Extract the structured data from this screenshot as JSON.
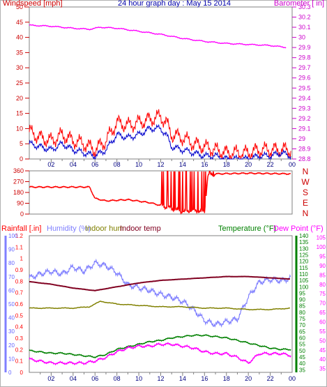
{
  "chart_data": [
    {
      "type": "line",
      "title": "24 hour graph day : May 15 2014",
      "left_label": "Windspeed [mph]",
      "right_label": "Barometer [ in]",
      "x_ticks": [
        "02",
        "04",
        "06",
        "08",
        "10",
        "12",
        "14",
        "16",
        "18",
        "20",
        "22",
        "00"
      ],
      "y_left_ticks": [
        "0",
        "5",
        "10",
        "15",
        "20",
        "25",
        "30",
        "35",
        "40",
        "45",
        "50"
      ],
      "y_left_range": [
        0,
        50
      ],
      "y_right_ticks": [
        "28.8",
        "28.9",
        "29",
        "29.1",
        "29.2",
        "29.3",
        "29.4",
        "29.5",
        "29.6",
        "29.7",
        "29.8",
        "29.9",
        "30",
        "30.1",
        "30.2",
        "30.3"
      ],
      "y_right_range": [
        28.8,
        30.3
      ],
      "colors": {
        "gust": "#ff0000",
        "wind": "#0000cc",
        "barometer": "#ff00ff",
        "left_axis": "#cc0000",
        "right_axis": "#cc00cc"
      },
      "series": [
        {
          "key": "barometer",
          "axis": "right",
          "hours": [
            0,
            2,
            4,
            5.5,
            6.5,
            8,
            10,
            12,
            14,
            16,
            18,
            20,
            22,
            23.5
          ],
          "values": [
            30.12,
            30.11,
            30.09,
            30.08,
            30.1,
            30.09,
            30.06,
            30.03,
            29.99,
            29.96,
            29.94,
            29.93,
            29.92,
            29.9
          ]
        },
        {
          "key": "gust",
          "axis": "left",
          "hours": [
            0,
            1,
            2,
            3,
            4,
            5,
            6,
            7,
            8,
            9,
            10,
            11,
            12,
            12.5,
            13,
            14,
            15,
            16,
            17,
            18,
            19,
            20,
            21,
            22,
            23,
            23.9
          ],
          "values": [
            9,
            7,
            6,
            8,
            6,
            5,
            3,
            6,
            12,
            11,
            12,
            13,
            14,
            12,
            8,
            7,
            5,
            4,
            3,
            2,
            2,
            2,
            3,
            3,
            3,
            3
          ]
        },
        {
          "key": "wind",
          "axis": "left",
          "hours": [
            0,
            1,
            2,
            3,
            4,
            5,
            6,
            7,
            8,
            9,
            10,
            11,
            12,
            12.5,
            13,
            14,
            15,
            16,
            17,
            18,
            19,
            20,
            21,
            22,
            23,
            23.9
          ],
          "values": [
            5,
            4,
            3,
            5,
            3,
            2,
            1,
            3,
            8,
            7,
            8,
            10,
            10,
            8,
            4,
            3,
            2,
            1,
            1,
            0,
            0,
            0,
            1,
            1,
            2,
            1
          ]
        }
      ]
    },
    {
      "type": "line",
      "right_label": "N W S E N",
      "y_left_ticks": [
        "0",
        "90",
        "180",
        "270",
        "360"
      ],
      "y_left_range": [
        0,
        360
      ],
      "colors": {
        "direction": "#ff0000",
        "axis": "#cc0000"
      },
      "series": [
        {
          "key": "direction",
          "hours": [
            0,
            5.5,
            6,
            7,
            9,
            11,
            12.5,
            14,
            15,
            16,
            16.3,
            17,
            20,
            23.9
          ],
          "values": [
            225,
            225,
            130,
            110,
            120,
            95,
            60,
            20,
            30,
            20,
            320,
            335,
            340,
            335
          ]
        }
      ]
    },
    {
      "type": "line",
      "labels": {
        "rainfall": "Rainfall [.in]",
        "humidity": "Humidity (%)",
        "indoor_hum": "Indoor hum",
        "indoor_temp": "Indoor temp",
        "temperature": "Temperature (°F)",
        "dew_point": "Dew Point (°F)"
      },
      "y_rain_ticks": [
        "0",
        "0.1",
        "0.2",
        "0.3",
        "0.4",
        "0.5",
        "0.6",
        "0.7",
        "0.8",
        "0.9",
        "1",
        "1.1",
        "1.2"
      ],
      "y_rain_range": [
        0,
        1.2
      ],
      "y_hum_ticks": [
        "0",
        "10",
        "20",
        "30",
        "40",
        "50",
        "60",
        "70",
        "80",
        "90",
        "100"
      ],
      "y_hum_range": [
        0,
        100
      ],
      "y_temp_ticks": [
        "35",
        "40",
        "45",
        "50",
        "55",
        "60",
        "65",
        "70",
        "75",
        "80",
        "85",
        "90",
        "95",
        "100",
        "105",
        "110",
        "115",
        "120",
        "125",
        "130",
        "135",
        "140"
      ],
      "y_temp_range": [
        33,
        140
      ],
      "y_dew_ticks": [
        "35",
        "40",
        "45",
        "50",
        "55",
        "60",
        "65",
        "70",
        "75",
        "80",
        "85",
        "90",
        "95",
        "100",
        "105"
      ],
      "colors": {
        "rainfall": "#ff0000",
        "humidity": "#8080ff",
        "indoor_hum": "#808000",
        "indoor_temp": "#800020",
        "temperature": "#008000",
        "dew_point": "#ff00ff",
        "rain_axis": "#6666ff",
        "temp_axis": "#008000",
        "dew_axis": "#ff00ff"
      },
      "series": [
        {
          "key": "humidity",
          "axis": "hum",
          "hours": [
            0,
            1,
            2,
            3,
            4,
            5,
            6,
            7,
            8,
            9,
            10,
            11,
            12,
            13,
            14,
            15,
            16,
            17,
            18,
            19,
            20,
            21,
            22,
            23,
            23.9
          ],
          "values": [
            69,
            72,
            74,
            72,
            77,
            74,
            80,
            78,
            73,
            64,
            62,
            60,
            57,
            55,
            52,
            46,
            38,
            35,
            37,
            39,
            55,
            66,
            68,
            67,
            69
          ]
        },
        {
          "key": "indoor_hum",
          "axis": "hum",
          "hours": [
            0,
            2,
            4,
            5.5,
            6.5,
            8,
            10,
            12,
            14,
            16,
            18,
            20,
            22,
            23.9
          ],
          "values": [
            47,
            47,
            47,
            48,
            52,
            50,
            49,
            48,
            48,
            47,
            47,
            46,
            46,
            47
          ]
        },
        {
          "key": "indoor_temp",
          "axis": "temp",
          "hours": [
            0,
            2,
            4,
            6,
            8,
            10,
            12,
            14,
            16,
            18,
            20,
            22,
            23.9
          ],
          "values": [
            104,
            102,
            99,
            97,
            100,
            103,
            105,
            106,
            107,
            108,
            108,
            107,
            106
          ]
        },
        {
          "key": "temperature",
          "axis": "temp",
          "hours": [
            0,
            1,
            2,
            3,
            4,
            5,
            6,
            7,
            8,
            9,
            10,
            11,
            12,
            13,
            14,
            15,
            16,
            17,
            18,
            19,
            20,
            21,
            22,
            23,
            23.9
          ],
          "values": [
            50,
            49,
            48,
            48,
            47,
            46,
            45,
            47,
            51,
            53,
            55,
            57,
            58,
            60,
            61,
            62,
            62,
            61,
            60,
            58,
            56,
            54,
            52,
            51,
            51
          ]
        },
        {
          "key": "dew_point",
          "axis": "temp",
          "hours": [
            0,
            1,
            2,
            3,
            4,
            5,
            6,
            7,
            8,
            9,
            10,
            11,
            12,
            13,
            14,
            15,
            16,
            17,
            18,
            19,
            20,
            21,
            22,
            23,
            23.9
          ],
          "values": [
            40,
            39,
            38,
            38,
            38,
            38,
            39,
            41,
            44,
            46,
            47,
            47,
            48,
            48,
            47,
            46,
            44,
            43,
            43,
            41,
            38,
            43,
            43,
            43,
            42
          ]
        }
      ]
    }
  ]
}
